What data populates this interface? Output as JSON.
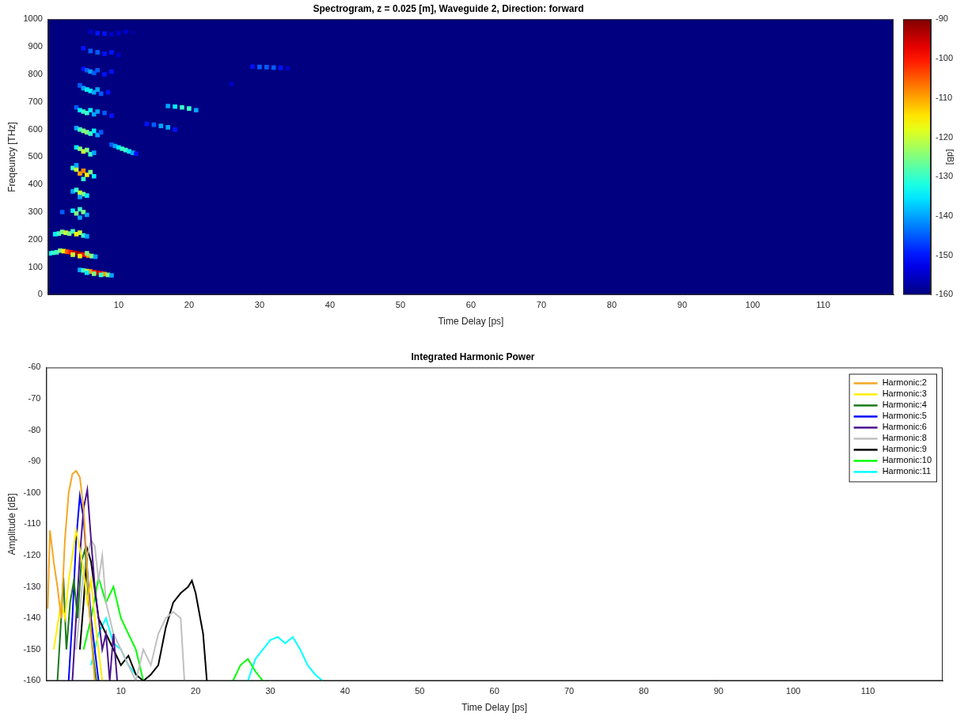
{
  "chart_data": [
    {
      "type": "heatmap",
      "title": "Spectrogram, z = 0.025 [m], Waveguide 2, Direction: forward",
      "x_label": "Time Delay [ps]",
      "y_label": "Freqeuncy [THz]",
      "xlim": [
        0,
        120
      ],
      "xticks": [
        10,
        20,
        30,
        40,
        50,
        60,
        70,
        80,
        90,
        100,
        110
      ],
      "ylim": [
        0,
        1000
      ],
      "yticks": [
        0,
        100,
        200,
        300,
        400,
        500,
        600,
        700,
        800,
        900,
        1000
      ],
      "grid": false,
      "cells": [
        [
          4.5,
          90,
          -140
        ],
        [
          5,
          88,
          -130
        ],
        [
          5.5,
          86,
          -120
        ],
        [
          6,
          84,
          -110
        ],
        [
          6.5,
          82,
          -100
        ],
        [
          7,
          80,
          -95
        ],
        [
          7.5,
          78,
          -100
        ],
        [
          8,
          75,
          -110
        ],
        [
          8.5,
          72,
          -125
        ],
        [
          9,
          70,
          -140
        ],
        [
          5.5,
          80,
          -135
        ],
        [
          6.5,
          76,
          -125
        ],
        [
          7.5,
          72,
          -130
        ],
        [
          0.2,
          150,
          -135
        ],
        [
          0.7,
          152,
          -130
        ],
        [
          1.2,
          154,
          -130
        ],
        [
          1.7,
          160,
          -125
        ],
        [
          2.2,
          158,
          -115
        ],
        [
          2.7,
          156,
          -105
        ],
        [
          3.2,
          154,
          -100
        ],
        [
          3.7,
          152,
          -95
        ],
        [
          4.2,
          150,
          -92
        ],
        [
          4.7,
          147,
          -95
        ],
        [
          5.2,
          145,
          -100
        ],
        [
          5.7,
          142,
          -110
        ],
        [
          6.2,
          140,
          -125
        ],
        [
          6.7,
          138,
          -140
        ],
        [
          3.5,
          145,
          -120
        ],
        [
          4.5,
          140,
          -115
        ],
        [
          5.5,
          150,
          -125
        ],
        [
          1,
          220,
          -135
        ],
        [
          1.5,
          222,
          -130
        ],
        [
          2,
          228,
          -125
        ],
        [
          2.5,
          225,
          -120
        ],
        [
          3,
          222,
          -125
        ],
        [
          3.5,
          230,
          -130
        ],
        [
          4,
          220,
          -115
        ],
        [
          4.5,
          225,
          -120
        ],
        [
          5,
          215,
          -130
        ],
        [
          5.5,
          212,
          -140
        ],
        [
          2,
          300,
          -145
        ],
        [
          3.5,
          305,
          -135
        ],
        [
          4,
          295,
          -125
        ],
        [
          4.5,
          310,
          -130
        ],
        [
          5,
          300,
          -125
        ],
        [
          5.5,
          290,
          -140
        ],
        [
          4.5,
          280,
          -140
        ],
        [
          3.5,
          375,
          -140
        ],
        [
          4,
          380,
          -130
        ],
        [
          4.5,
          370,
          -120
        ],
        [
          5,
          365,
          -125
        ],
        [
          5.5,
          360,
          -135
        ],
        [
          4.5,
          355,
          -140
        ],
        [
          3.5,
          460,
          -130
        ],
        [
          4,
          455,
          -120
        ],
        [
          4.5,
          440,
          -110
        ],
        [
          5,
          450,
          -108
        ],
        [
          5.5,
          435,
          -115
        ],
        [
          6,
          445,
          -125
        ],
        [
          6.5,
          430,
          -135
        ],
        [
          4,
          470,
          -140
        ],
        [
          5,
          420,
          -130
        ],
        [
          4,
          535,
          -135
        ],
        [
          4.5,
          530,
          -125
        ],
        [
          5,
          520,
          -120
        ],
        [
          5.5,
          525,
          -125
        ],
        [
          6,
          510,
          -130
        ],
        [
          6.5,
          515,
          -140
        ],
        [
          9,
          545,
          -145
        ],
        [
          9.5,
          540,
          -140
        ],
        [
          10,
          535,
          -135
        ],
        [
          10.5,
          530,
          -130
        ],
        [
          11,
          525,
          -130
        ],
        [
          11.5,
          520,
          -135
        ],
        [
          12,
          515,
          -140
        ],
        [
          12.5,
          512,
          -150
        ],
        [
          4,
          605,
          -140
        ],
        [
          4.5,
          600,
          -130
        ],
        [
          5,
          595,
          -125
        ],
        [
          5.5,
          590,
          -125
        ],
        [
          6,
          585,
          -130
        ],
        [
          6.5,
          595,
          -135
        ],
        [
          7,
          580,
          -140
        ],
        [
          7.5,
          590,
          -145
        ],
        [
          14,
          620,
          -150
        ],
        [
          15,
          617,
          -145
        ],
        [
          16,
          613,
          -140
        ],
        [
          17,
          608,
          -140
        ],
        [
          18,
          600,
          -150
        ],
        [
          4,
          680,
          -145
        ],
        [
          4.5,
          670,
          -135
        ],
        [
          5,
          665,
          -130
        ],
        [
          5.5,
          660,
          -130
        ],
        [
          6,
          670,
          -135
        ],
        [
          6.5,
          655,
          -140
        ],
        [
          7,
          665,
          -140
        ],
        [
          8,
          660,
          -145
        ],
        [
          9,
          650,
          -150
        ],
        [
          17,
          685,
          -140
        ],
        [
          18,
          683,
          -135
        ],
        [
          19,
          680,
          -130
        ],
        [
          20,
          676,
          -130
        ],
        [
          21,
          670,
          -140
        ],
        [
          4.5,
          760,
          -145
        ],
        [
          5,
          750,
          -140
        ],
        [
          5.5,
          745,
          -135
        ],
        [
          6,
          740,
          -135
        ],
        [
          6.5,
          735,
          -140
        ],
        [
          7,
          745,
          -140
        ],
        [
          7.5,
          730,
          -145
        ],
        [
          8.5,
          735,
          -150
        ],
        [
          26,
          765,
          -155
        ],
        [
          5,
          820,
          -150
        ],
        [
          5.5,
          815,
          -145
        ],
        [
          6,
          810,
          -140
        ],
        [
          6.5,
          805,
          -145
        ],
        [
          7,
          815,
          -145
        ],
        [
          8,
          800,
          -150
        ],
        [
          9,
          810,
          -150
        ],
        [
          29,
          828,
          -150
        ],
        [
          30,
          827,
          -145
        ],
        [
          31,
          826,
          -145
        ],
        [
          32,
          825,
          -145
        ],
        [
          33,
          824,
          -150
        ],
        [
          34,
          822,
          -155
        ],
        [
          5,
          895,
          -150
        ],
        [
          6,
          885,
          -145
        ],
        [
          7,
          880,
          -145
        ],
        [
          8,
          875,
          -150
        ],
        [
          9,
          880,
          -150
        ],
        [
          10,
          870,
          -155
        ],
        [
          6,
          955,
          -155
        ],
        [
          7,
          950,
          -150
        ],
        [
          8,
          948,
          -150
        ],
        [
          9,
          945,
          -155
        ],
        [
          10,
          950,
          -155
        ],
        [
          11,
          955,
          -155
        ],
        [
          12,
          952,
          -158
        ]
      ],
      "colorbar": {
        "label": "[dB]",
        "range": [
          -160,
          -90
        ],
        "ticks": [
          -90,
          -100,
          -110,
          -120,
          -130,
          -140,
          -150,
          -160
        ]
      }
    },
    {
      "type": "line",
      "title": "Integrated Harmonic Power",
      "x_label": "Time Delay [ps]",
      "y_label": "Amplitude [dB]",
      "xlim": [
        0,
        120
      ],
      "xticks": [
        10,
        20,
        30,
        40,
        50,
        60,
        70,
        80,
        90,
        100,
        110
      ],
      "ylim": [
        -160,
        -60
      ],
      "yticks": [
        -160,
        -150,
        -140,
        -130,
        -120,
        -110,
        -100,
        -90,
        -80,
        -70,
        -60
      ],
      "grid": false,
      "legend": "upper right",
      "series": [
        {
          "name": "Harmonic:2",
          "color": "#f5a623",
          "x": [
            0.2,
            0.5,
            1,
            1.5,
            2,
            2.5,
            3,
            3.5,
            4,
            4.5,
            5,
            5.5,
            6,
            6.5
          ],
          "values": [
            -137,
            -112,
            -122,
            -130,
            -140,
            -115,
            -100,
            -94,
            -93,
            -95,
            -105,
            -125,
            -145,
            -160
          ]
        },
        {
          "name": "Harmonic:3",
          "color": "#ffee00",
          "x": [
            1,
            2,
            2.5,
            3,
            3.5,
            4,
            4.5,
            5,
            5.5,
            6,
            6.5,
            7,
            7.5
          ],
          "values": [
            -150,
            -135,
            -140,
            -128,
            -120,
            -112,
            -118,
            -125,
            -135,
            -128,
            -140,
            -150,
            -160
          ]
        },
        {
          "name": "Harmonic:4",
          "color": "#1a7a1a",
          "x": [
            1.5,
            2,
            2.3,
            2.7,
            3.2,
            3.7,
            4.2,
            4.7,
            5.2,
            5.7,
            6.2,
            6.7
          ],
          "values": [
            -160,
            -140,
            -127,
            -150,
            -135,
            -128,
            -140,
            -122,
            -118,
            -135,
            -150,
            -160
          ]
        },
        {
          "name": "Harmonic:5",
          "color": "#0000ff",
          "x": [
            3,
            3.5,
            4,
            4.5,
            5,
            5.5,
            6,
            6.5,
            7
          ],
          "values": [
            -160,
            -140,
            -115,
            -101,
            -108,
            -125,
            -140,
            -150,
            -160
          ]
        },
        {
          "name": "Harmonic:6",
          "color": "#4a148c",
          "x": [
            3.5,
            4,
            4.5,
            5,
            5.5,
            6,
            6.5,
            7,
            7.5,
            8,
            8.5,
            9,
            9.5
          ],
          "values": [
            -160,
            -140,
            -120,
            -105,
            -99,
            -115,
            -130,
            -140,
            -150,
            -145,
            -160,
            -145,
            -160
          ]
        },
        {
          "name": "Harmonic:8",
          "color": "#c0c0c0",
          "x": [
            4,
            5,
            6,
            6.5,
            7,
            7.5,
            8,
            9,
            10,
            11,
            12,
            13,
            14,
            15,
            16,
            17,
            18,
            18.5
          ],
          "values": [
            -150,
            -125,
            -115,
            -117,
            -128,
            -120,
            -135,
            -145,
            -150,
            -155,
            -160,
            -150,
            -155,
            -145,
            -140,
            -138,
            -140,
            -160
          ]
        },
        {
          "name": "Harmonic:9",
          "color": "#000000",
          "x": [
            4.5,
            5,
            5.5,
            6,
            7,
            8,
            9,
            10,
            11,
            12,
            13,
            14,
            15,
            16,
            17,
            18,
            19,
            19.5,
            20,
            21,
            21.5
          ],
          "values": [
            -150,
            -135,
            -118,
            -122,
            -140,
            -145,
            -150,
            -155,
            -152,
            -158,
            -160,
            -158,
            -155,
            -143,
            -135,
            -132,
            -130,
            -128,
            -132,
            -145,
            -160
          ]
        },
        {
          "name": "Harmonic:10",
          "color": "#00ff00",
          "x": [
            5,
            6,
            7,
            8,
            9,
            10,
            11,
            12,
            13,
            19,
            25,
            26,
            27,
            28,
            29
          ],
          "values": [
            -150,
            -140,
            -127,
            -135,
            -130,
            -140,
            -145,
            -150,
            -160,
            null,
            -160,
            -155,
            -153,
            -157,
            -160
          ]
        },
        {
          "name": "Harmonic:11",
          "color": "#00ffff",
          "x": [
            6,
            7,
            8,
            9,
            10,
            11,
            12,
            13,
            20,
            27,
            28,
            29,
            30,
            31,
            32,
            33,
            34,
            35,
            36,
            37
          ],
          "values": [
            -155,
            -145,
            -140,
            -148,
            -150,
            -155,
            -158,
            -160,
            null,
            -160,
            -153,
            -150,
            -147,
            -146,
            -148,
            -146,
            -150,
            -155,
            -158,
            -160
          ]
        }
      ]
    }
  ]
}
